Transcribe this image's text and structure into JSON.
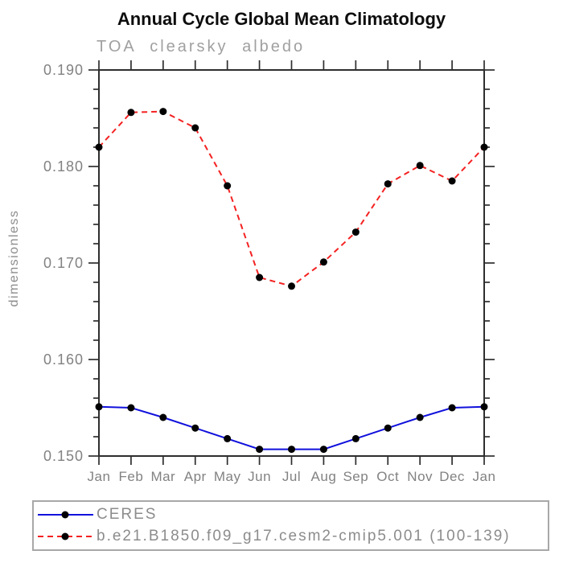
{
  "chart_data": {
    "type": "line",
    "title": "Annual Cycle Global Mean Climatology",
    "subtitle": "TOA clearsky albedo",
    "ylabel": "dimensionless",
    "x_tick_labels": [
      "Jan",
      "Feb",
      "Mar",
      "Apr",
      "May",
      "Jun",
      "Jul",
      "Aug",
      "Sep",
      "Oct",
      "Nov",
      "Dec",
      "Jan"
    ],
    "ylim": [
      0.15,
      0.19
    ],
    "y_major_ticks": [
      0.15,
      0.16,
      0.17,
      0.18,
      0.19
    ],
    "y_minor_step": 0.002,
    "grid": false,
    "legend_position": "bottom-left-box",
    "marker_color": "#000000",
    "axis_color": "#2e2e2e",
    "series": [
      {
        "name": "CERES",
        "color": "#1111dd",
        "style": "solid",
        "marker": "filled-circle",
        "values": [
          0.1551,
          0.155,
          0.154,
          0.1529,
          0.1518,
          0.1507,
          0.1507,
          0.1507,
          0.1518,
          0.1529,
          0.154,
          0.155,
          0.1551
        ]
      },
      {
        "name": "b.e21.B1850.f09_g17.cesm2-cmip5.001 (100-139)",
        "color": "#f42222",
        "style": "dashed",
        "marker": "filled-circle",
        "values": [
          0.182,
          0.1856,
          0.1857,
          0.184,
          0.178,
          0.1685,
          0.1676,
          0.1701,
          0.1732,
          0.1782,
          0.1801,
          0.1785,
          0.182
        ]
      }
    ]
  }
}
